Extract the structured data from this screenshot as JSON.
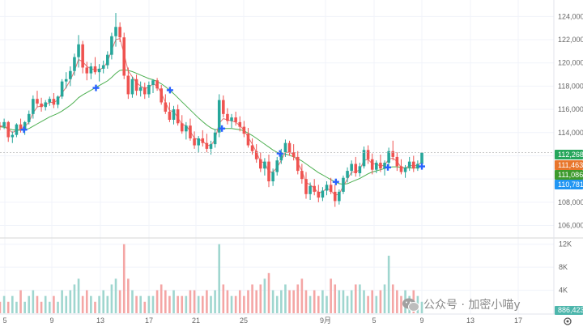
{
  "chart_data": {
    "type": "candlestick",
    "price_axis": {
      "ticks": [
        "124,000",
        "122,000",
        "120,000",
        "118,000",
        "116,000",
        "114,000",
        "112,000",
        "110,000",
        "108,000",
        "106,000"
      ],
      "ylim": [
        105200,
        125000
      ]
    },
    "volume_axis": {
      "ticks": [
        "12K",
        "8K",
        "4K"
      ],
      "ylim": [
        0,
        12800
      ]
    },
    "x_axis": {
      "labels": [
        "5",
        "9",
        "13",
        "17",
        "21",
        "25",
        "9月",
        "5",
        "9",
        "13",
        "17"
      ],
      "range_days": [
        0,
        43
      ]
    },
    "series": [
      {
        "name": "",
        "type": "candles",
        "ohlc": [
          [
            114600,
            114900,
            114200,
            114500
          ],
          [
            114500,
            115200,
            114300,
            114900
          ],
          [
            114900,
            115000,
            113200,
            113600
          ],
          [
            113600,
            114100,
            113100,
            113800
          ],
          [
            113800,
            114800,
            113600,
            114700
          ],
          [
            114700,
            115200,
            114000,
            114300
          ],
          [
            114300,
            115000,
            113800,
            114900
          ],
          [
            114900,
            115900,
            114700,
            115600
          ],
          [
            115600,
            117200,
            115200,
            116900
          ],
          [
            116900,
            117600,
            116200,
            116500
          ],
          [
            116500,
            117000,
            115800,
            116200
          ],
          [
            116200,
            116800,
            115900,
            116600
          ],
          [
            116600,
            117100,
            116300,
            116900
          ],
          [
            116900,
            117400,
            116100,
            116400
          ],
          [
            116400,
            117200,
            116100,
            117100
          ],
          [
            117100,
            118600,
            116900,
            118400
          ],
          [
            118400,
            119200,
            117800,
            118600
          ],
          [
            118600,
            119700,
            118000,
            119300
          ],
          [
            119300,
            120800,
            118900,
            120500
          ],
          [
            120500,
            122400,
            119600,
            121600
          ],
          [
            121600,
            121900,
            119100,
            119600
          ],
          [
            119600,
            120100,
            118500,
            119100
          ],
          [
            119100,
            120000,
            118600,
            119700
          ],
          [
            119700,
            120500,
            119000,
            119200
          ],
          [
            119200,
            119900,
            118400,
            119500
          ],
          [
            119500,
            120200,
            119100,
            119800
          ],
          [
            119800,
            121000,
            119500,
            120700
          ],
          [
            120700,
            122600,
            120300,
            122300
          ],
          [
            122300,
            124300,
            121400,
            123100
          ],
          [
            123100,
            123500,
            121800,
            122200
          ],
          [
            122200,
            122600,
            118600,
            118900
          ],
          [
            118900,
            119600,
            116900,
            117300
          ],
          [
            117300,
            118800,
            117000,
            118600
          ],
          [
            118600,
            119000,
            117200,
            117600
          ],
          [
            117600,
            118400,
            117100,
            117900
          ],
          [
            117900,
            118300,
            116900,
            117300
          ],
          [
            117300,
            118400,
            117000,
            118100
          ],
          [
            118100,
            118600,
            117400,
            118500
          ],
          [
            118500,
            118700,
            117600,
            117800
          ],
          [
            117800,
            118100,
            116400,
            116600
          ],
          [
            116600,
            117300,
            115600,
            115800
          ],
          [
            115800,
            116600,
            114900,
            115100
          ],
          [
            115100,
            116300,
            114700,
            116000
          ],
          [
            116000,
            116400,
            114600,
            114800
          ],
          [
            114800,
            115500,
            113900,
            114100
          ],
          [
            114100,
            114900,
            113400,
            114600
          ],
          [
            114600,
            115200,
            113300,
            113500
          ],
          [
            113500,
            114100,
            112600,
            112900
          ],
          [
            112900,
            113700,
            112300,
            113500
          ],
          [
            113500,
            114200,
            112800,
            113100
          ],
          [
            113100,
            113900,
            112300,
            112600
          ],
          [
            112600,
            113300,
            112100,
            113000
          ],
          [
            113000,
            114300,
            112700,
            114000
          ],
          [
            114000,
            117300,
            113600,
            116800
          ],
          [
            116800,
            117200,
            115300,
            115600
          ],
          [
            115600,
            116100,
            114700,
            115000
          ],
          [
            115000,
            115600,
            114400,
            115300
          ],
          [
            115300,
            115800,
            114600,
            114900
          ],
          [
            114900,
            115400,
            114100,
            114500
          ],
          [
            114500,
            115000,
            113600,
            113900
          ],
          [
            113900,
            114400,
            112700,
            112900
          ],
          [
            112900,
            113500,
            112100,
            112400
          ],
          [
            112400,
            113000,
            111400,
            111700
          ],
          [
            111700,
            112300,
            110600,
            110900
          ],
          [
            110900,
            111800,
            110300,
            111500
          ],
          [
            111500,
            112100,
            109300,
            109800
          ],
          [
            109800,
            110900,
            109400,
            110600
          ],
          [
            110600,
            111900,
            110300,
            111600
          ],
          [
            111600,
            112600,
            111300,
            112300
          ],
          [
            112300,
            113400,
            111900,
            113100
          ],
          [
            113100,
            113300,
            112000,
            112300
          ],
          [
            112300,
            113000,
            111600,
            111900
          ],
          [
            111900,
            112400,
            110400,
            110700
          ],
          [
            110700,
            111300,
            109600,
            110000
          ],
          [
            110000,
            110600,
            108300,
            108700
          ],
          [
            108700,
            109700,
            108200,
            109400
          ],
          [
            109400,
            110000,
            108600,
            108900
          ],
          [
            108900,
            109500,
            108000,
            108400
          ],
          [
            108400,
            109300,
            108100,
            109000
          ],
          [
            109000,
            109800,
            108600,
            109500
          ],
          [
            109500,
            110100,
            108700,
            108900
          ],
          [
            108900,
            109500,
            107600,
            108100
          ],
          [
            108100,
            109100,
            107800,
            108900
          ],
          [
            108900,
            110300,
            108700,
            110100
          ],
          [
            110100,
            111000,
            109700,
            110700
          ],
          [
            110700,
            111600,
            110300,
            111300
          ],
          [
            111300,
            111900,
            110200,
            110500
          ],
          [
            110500,
            111400,
            110200,
            111100
          ],
          [
            111100,
            112800,
            110900,
            112500
          ],
          [
            112500,
            112900,
            111300,
            111700
          ],
          [
            111700,
            112200,
            110400,
            110800
          ],
          [
            110800,
            111600,
            110500,
            111400
          ],
          [
            111400,
            112100,
            110600,
            110900
          ],
          [
            110900,
            111600,
            110300,
            111400
          ],
          [
            111400,
            112700,
            111100,
            112400
          ],
          [
            112400,
            113300,
            111600,
            111900
          ],
          [
            111900,
            112300,
            110700,
            111100
          ],
          [
            111100,
            111700,
            110400,
            110600
          ],
          [
            110600,
            111200,
            110100,
            111000
          ],
          [
            111000,
            111900,
            110700,
            111500
          ],
          [
            111500,
            112000,
            110600,
            110900
          ],
          [
            110900,
            111600,
            110700,
            111300
          ],
          [
            111300,
            112300,
            111100,
            112268
          ]
        ]
      },
      {
        "name": "",
        "type": "line",
        "color": "#4caf50",
        "values": [
          114500,
          114450,
          114350,
          114250,
          114200,
          114200,
          114250,
          114350,
          114550,
          114750,
          114950,
          115150,
          115350,
          115500,
          115650,
          115850,
          116100,
          116350,
          116650,
          117000,
          117250,
          117450,
          117650,
          117850,
          118050,
          118250,
          118450,
          118750,
          119100,
          119350,
          119400,
          119350,
          119250,
          119100,
          118950,
          118800,
          118650,
          118550,
          118400,
          118200,
          117950,
          117650,
          117350,
          117000,
          116650,
          116300,
          115950,
          115600,
          115250,
          114950,
          114650,
          114400,
          114250,
          114300,
          114350,
          114350,
          114350,
          114300,
          114250,
          114150,
          113950,
          113750,
          113500,
          113250,
          113000,
          112750,
          112500,
          112300,
          112200,
          112150,
          112050,
          111900,
          111750,
          111550,
          111300,
          111050,
          110800,
          110550,
          110350,
          110150,
          109950,
          109750,
          109600,
          109550,
          109600,
          109750,
          109900,
          110050,
          110250,
          110450,
          110600,
          110700,
          110800,
          110900,
          111000,
          111050,
          111050,
          111000,
          110950,
          110950,
          110950,
          111000,
          111086
        ]
      },
      {
        "name": "",
        "type": "line",
        "color": "#e57373",
        "values": [
          114500,
          114600,
          114300,
          114000,
          114200,
          114300,
          114500,
          114900,
          115700,
          116200,
          116300,
          116400,
          116600,
          116600,
          116800,
          117400,
          117900,
          118500,
          119300,
          120300,
          120100,
          119700,
          119500,
          119400,
          119400,
          119600,
          120100,
          121100,
          122000,
          122100,
          120800,
          119300,
          118800,
          118300,
          118000,
          117800,
          117900,
          118200,
          118000,
          117400,
          116600,
          115900,
          115800,
          115300,
          114700,
          114600,
          114100,
          113500,
          113400,
          113300,
          112900,
          112900,
          113400,
          114800,
          115200,
          115100,
          115000,
          114900,
          114600,
          114200,
          113600,
          113000,
          112300,
          111500,
          111400,
          110600,
          110600,
          111000,
          111600,
          112300,
          112300,
          112100,
          111400,
          110700,
          109700,
          109500,
          109200,
          108800,
          108900,
          109200,
          109000,
          108600,
          108700,
          109400,
          110000,
          110600,
          110600,
          110800,
          111600,
          111700,
          111300,
          111300,
          111100,
          111200,
          111700,
          111800,
          111500,
          111000,
          110900,
          111200,
          111100,
          111200,
          111463
        ]
      }
    ],
    "signals_at": [
      12,
      48,
      85,
      111,
      140,
      168,
      194,
      211
    ],
    "volume": [
      2,
      3,
      2,
      3,
      2,
      4,
      2,
      3,
      4,
      3,
      2,
      3,
      2,
      3,
      2,
      4,
      3,
      4,
      5,
      6,
      3,
      4,
      3,
      2,
      3,
      4,
      3,
      5,
      6,
      4,
      12,
      6,
      4,
      3,
      3,
      2,
      3,
      3,
      4,
      5,
      4,
      3,
      4,
      3,
      3,
      3,
      4,
      4,
      3,
      3,
      4,
      3,
      4,
      12,
      5,
      4,
      3,
      3,
      4,
      3,
      4,
      5,
      4,
      5,
      6,
      7,
      4,
      3,
      4,
      5,
      4,
      4,
      5,
      6,
      4,
      3,
      4,
      3,
      4,
      3,
      6,
      5,
      4,
      4,
      3,
      4,
      5,
      5,
      4,
      3,
      4,
      3,
      4,
      5,
      10,
      5,
      4,
      3,
      4,
      3,
      4,
      3,
      2
    ],
    "price_tags": [
      {
        "label": "112,268",
        "value": 112268,
        "color": "#26a65b"
      },
      {
        "label": "111,463",
        "value": 111463,
        "color": "#e8762c"
      },
      {
        "label": "111,086",
        "value": 111086,
        "color": "#3d9a2c"
      },
      {
        "label": "110,781",
        "value": 110781,
        "color": "#2196f3"
      }
    ],
    "volume_tag": {
      "label": "886,423",
      "color": "#4db6ac"
    },
    "colors": {
      "up": "#26a69a",
      "down": "#ef5350",
      "up_vol": "#9fd6cf",
      "down_vol": "#f4a6a5",
      "grid": "#f0f3fa",
      "signal": "#2962ff"
    }
  },
  "watermark": "公众号 · 加密小喵y"
}
